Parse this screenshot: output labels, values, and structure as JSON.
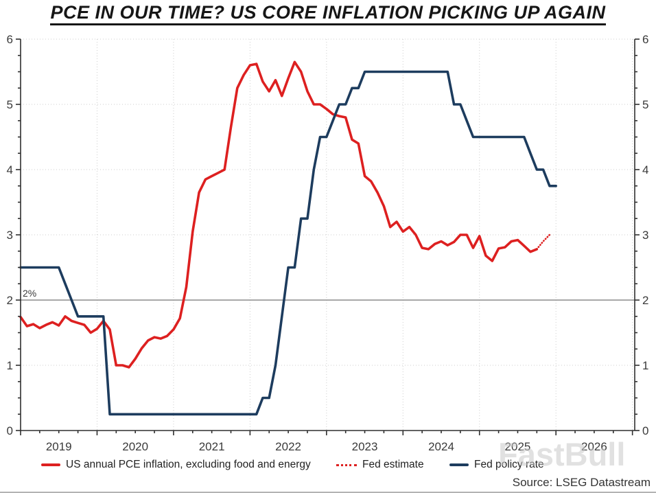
{
  "source": "Source: LSEG Datastream",
  "watermark": "FastBull",
  "chart_data": {
    "type": "line",
    "title": "PCE IN OUR TIME? US CORE INFLATION PICKING UP AGAIN",
    "xlabel": "",
    "ylabel": "",
    "ylim": [
      0,
      6
    ],
    "x_start": 2019,
    "x_end": 2027.03,
    "grid": "dotted",
    "legend_position": "bottom",
    "y_ticks": [
      0,
      1,
      2,
      3,
      4,
      5,
      6
    ],
    "x_year_labels": [
      "2019",
      "2020",
      "2021",
      "2022",
      "2023",
      "2024",
      "2025",
      "2026"
    ],
    "reference_line": {
      "y": 2,
      "label": "2%"
    },
    "series": [
      {
        "name": "US annual PCE inflation, excluding food and energy",
        "color": "#dd2020",
        "style": "solid",
        "width": 3.6,
        "x_start": 2019.0,
        "interval": "monthly",
        "values": [
          1.74,
          1.6,
          1.63,
          1.57,
          1.62,
          1.66,
          1.61,
          1.75,
          1.68,
          1.65,
          1.62,
          1.5,
          1.56,
          1.68,
          1.55,
          1.0,
          1.0,
          0.97,
          1.1,
          1.26,
          1.38,
          1.43,
          1.41,
          1.45,
          1.55,
          1.72,
          2.2,
          3.05,
          3.65,
          3.85,
          3.9,
          3.95,
          4.0,
          4.65,
          5.25,
          5.45,
          5.6,
          5.62,
          5.35,
          5.2,
          5.37,
          5.13,
          5.4,
          5.65,
          5.5,
          5.2,
          5.0,
          5.0,
          4.93,
          4.85,
          4.82,
          4.8,
          4.46,
          4.4,
          3.9,
          3.82,
          3.65,
          3.44,
          3.12,
          3.2,
          3.05,
          3.12,
          3.0,
          2.8,
          2.78,
          2.86,
          2.9,
          2.84,
          2.89,
          3.0,
          3.0,
          2.8,
          2.98,
          2.68,
          2.6,
          2.79,
          2.81,
          2.9,
          2.92,
          2.83,
          2.74,
          2.78
        ]
      },
      {
        "name": "Fed estimate",
        "color": "#dd2020",
        "style": "dotted",
        "width": 2.6,
        "x_start": 2025.75,
        "interval": "monthly",
        "values": [
          2.78,
          2.9,
          3.0
        ]
      },
      {
        "name": "Fed policy rate",
        "color": "#1d3c5e",
        "style": "solid",
        "width": 3.6,
        "x_start": 2019.0,
        "interval": "monthly",
        "values": [
          2.5,
          2.5,
          2.5,
          2.5,
          2.5,
          2.5,
          2.5,
          2.25,
          2.0,
          1.75,
          1.75,
          1.75,
          1.75,
          1.75,
          0.25,
          0.25,
          0.25,
          0.25,
          0.25,
          0.25,
          0.25,
          0.25,
          0.25,
          0.25,
          0.25,
          0.25,
          0.25,
          0.25,
          0.25,
          0.25,
          0.25,
          0.25,
          0.25,
          0.25,
          0.25,
          0.25,
          0.25,
          0.25,
          0.5,
          0.5,
          1.0,
          1.75,
          2.5,
          2.5,
          3.25,
          3.25,
          4.0,
          4.5,
          4.5,
          4.75,
          5.0,
          5.0,
          5.25,
          5.25,
          5.5,
          5.5,
          5.5,
          5.5,
          5.5,
          5.5,
          5.5,
          5.5,
          5.5,
          5.5,
          5.5,
          5.5,
          5.5,
          5.5,
          5.0,
          5.0,
          4.75,
          4.5,
          4.5,
          4.5,
          4.5,
          4.5,
          4.5,
          4.5,
          4.5,
          4.5,
          4.25,
          4.0,
          4.0,
          3.75,
          3.75
        ]
      }
    ]
  }
}
